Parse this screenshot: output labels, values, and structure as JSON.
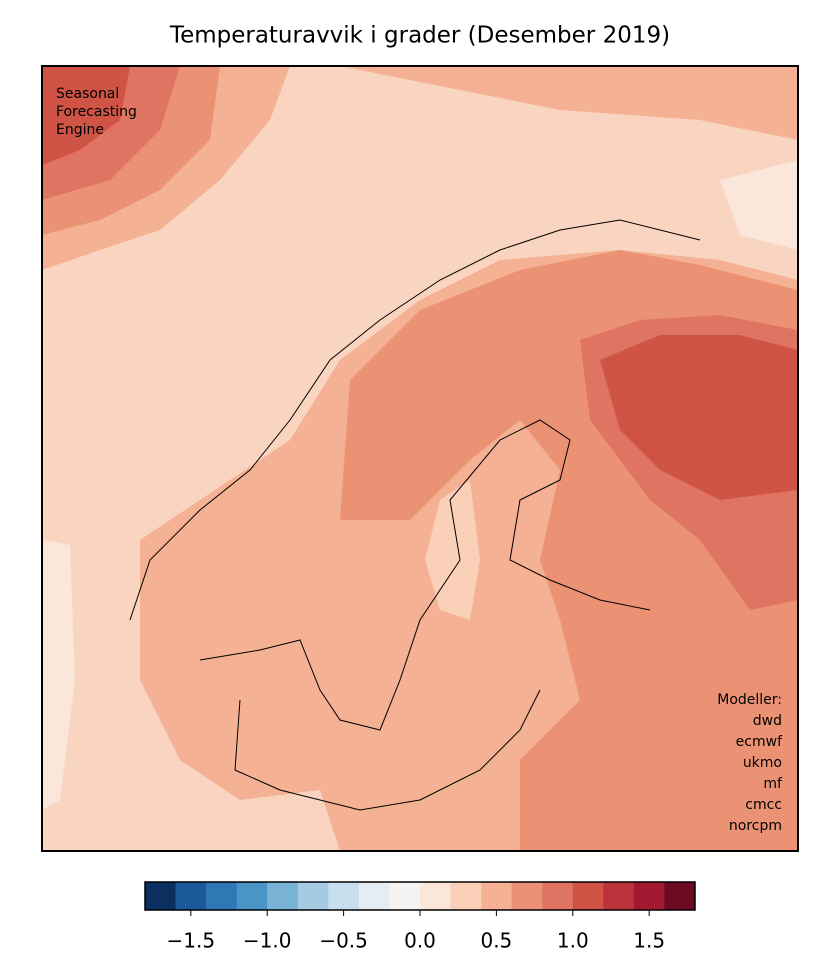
{
  "title": "Temperaturavvik i grader (Desember 2019)",
  "source_label": [
    "Seasonal",
    "Forecasting",
    "Engine"
  ],
  "models_heading": "Modeller:",
  "models": [
    "dwd",
    "ecmwf",
    "ukmo",
    "mf",
    "cmcc",
    "norcpm"
  ],
  "colorbar": {
    "lim": [
      -1.8,
      1.8
    ],
    "colors": [
      "#0b2f5e",
      "#1c5a9c",
      "#2f78b5",
      "#4a95c6",
      "#78b3d6",
      "#a4cbe2",
      "#c7deec",
      "#e3edf3",
      "#f5f3f1",
      "#fbe6da",
      "#fbd0b9",
      "#f4b193",
      "#ec9274",
      "#df7462",
      "#cf5446",
      "#bd323a",
      "#a01930",
      "#6b0a22"
    ],
    "ticks": [
      {
        "value": -1.5,
        "label": "−1.5"
      },
      {
        "value": -1.0,
        "label": "−1.0"
      },
      {
        "value": -0.5,
        "label": "−0.5"
      },
      {
        "value": 0.0,
        "label": "0.0"
      },
      0.5,
      {
        "value": 1.0,
        "label": "1.0"
      },
      1.5
    ]
  }
}
